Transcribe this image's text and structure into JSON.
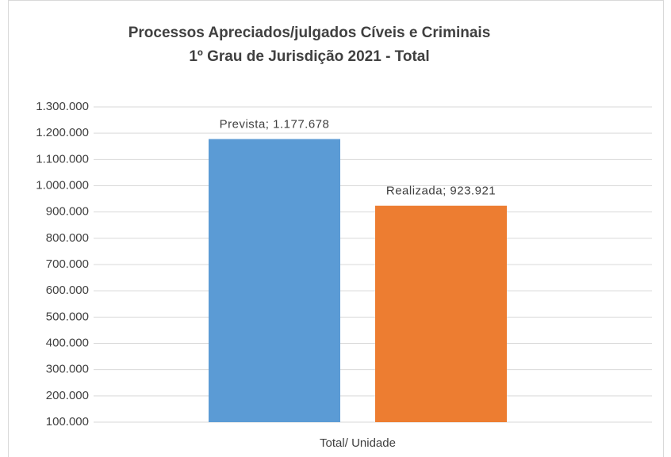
{
  "chart_data": {
    "type": "bar",
    "title": "Processos Apreciados/julgados Cíveis e Criminais",
    "subtitle": "1º  Grau de Jurisdição 2021 - Total",
    "categories": [
      "Total/ Unidade"
    ],
    "series": [
      {
        "name": "Prevista",
        "color": "#5b9bd5",
        "values": [
          1177678
        ],
        "value_labels": [
          "Prevista; 1.177.678"
        ]
      },
      {
        "name": "Realizada",
        "color": "#ed7d31",
        "values": [
          923921
        ],
        "value_labels": [
          "Realizada; 923.921"
        ]
      }
    ],
    "ylim": [
      100000,
      1300000
    ],
    "yticks": [
      {
        "value": 100000,
        "label": "100.000"
      },
      {
        "value": 200000,
        "label": "200.000"
      },
      {
        "value": 300000,
        "label": "300.000"
      },
      {
        "value": 400000,
        "label": "400.000"
      },
      {
        "value": 500000,
        "label": "500.000"
      },
      {
        "value": 600000,
        "label": "600.000"
      },
      {
        "value": 700000,
        "label": "700.000"
      },
      {
        "value": 800000,
        "label": "800.000"
      },
      {
        "value": 900000,
        "label": "900.000"
      },
      {
        "value": 1000000,
        "label": "1.000.000"
      },
      {
        "value": 1100000,
        "label": "1.100.000"
      },
      {
        "value": 1200000,
        "label": "1.200.000"
      },
      {
        "value": 1300000,
        "label": "1.300.000"
      }
    ],
    "grid": true
  }
}
